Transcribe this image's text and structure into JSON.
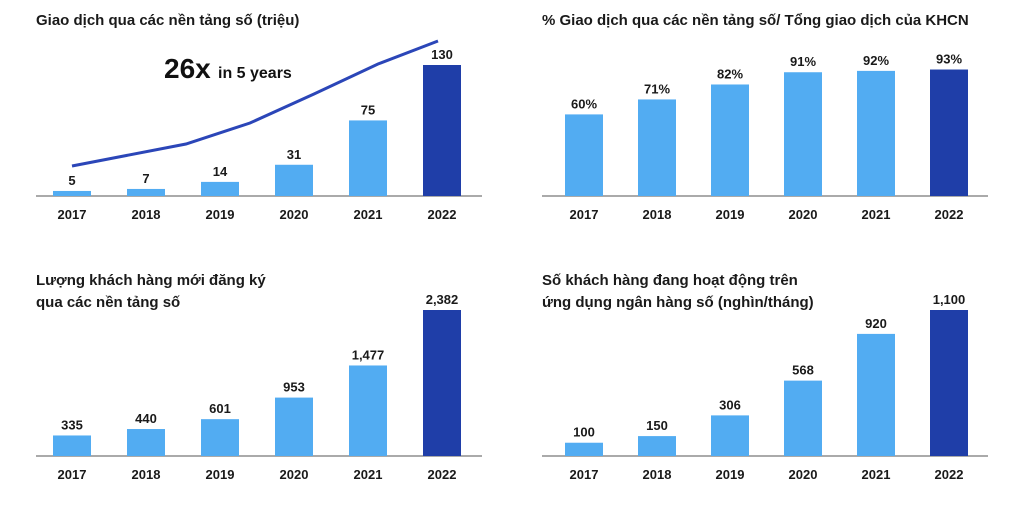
{
  "colors": {
    "bar": "#52acf2",
    "highlight": "#1f3ea8",
    "line": "#2b46b8",
    "axis": "#555555"
  },
  "chart_data": [
    {
      "type": "bar",
      "title": "Giao dịch qua các nền tảng số (triệu)",
      "categories": [
        "2017",
        "2018",
        "2019",
        "2020",
        "2021",
        "2022"
      ],
      "values": [
        5,
        7,
        14,
        31,
        75,
        130
      ],
      "value_labels": [
        "5",
        "7",
        "14",
        "31",
        "75",
        "130"
      ],
      "trend_line": true,
      "annotation_big": "26x",
      "annotation_small": "in 5 years",
      "highlight_last": true,
      "ylim": [
        0,
        130
      ]
    },
    {
      "type": "bar",
      "title": "% Giao dịch qua các nền tảng số/ Tổng giao dịch của KHCN",
      "categories": [
        "2017",
        "2018",
        "2019",
        "2020",
        "2021",
        "2022"
      ],
      "values": [
        60,
        71,
        82,
        91,
        92,
        93
      ],
      "value_labels": [
        "60%",
        "71%",
        "82%",
        "91%",
        "92%",
        "93%"
      ],
      "highlight_last": true,
      "ylim": [
        0,
        100
      ]
    },
    {
      "type": "bar",
      "title": "Lượng khách hàng mới đăng ký\nqua các nền tảng số",
      "categories": [
        "2017",
        "2018",
        "2019",
        "2020",
        "2021",
        "2022"
      ],
      "values": [
        335,
        440,
        601,
        953,
        1477,
        2382
      ],
      "value_labels": [
        "335",
        "440",
        "601",
        "953",
        "1,477",
        "2,382"
      ],
      "highlight_last": true,
      "ylim": [
        0,
        2382
      ]
    },
    {
      "type": "bar",
      "title": "Số khách hàng đang hoạt động trên\nứng dụng ngân hàng số (nghìn/tháng)",
      "categories": [
        "2017",
        "2018",
        "2019",
        "2020",
        "2021",
        "2022"
      ],
      "values": [
        100,
        150,
        306,
        568,
        920,
        1100
      ],
      "value_labels": [
        "100",
        "150",
        "306",
        "568",
        "920",
        "1,100"
      ],
      "highlight_last": true,
      "ylim": [
        0,
        1100
      ]
    }
  ]
}
